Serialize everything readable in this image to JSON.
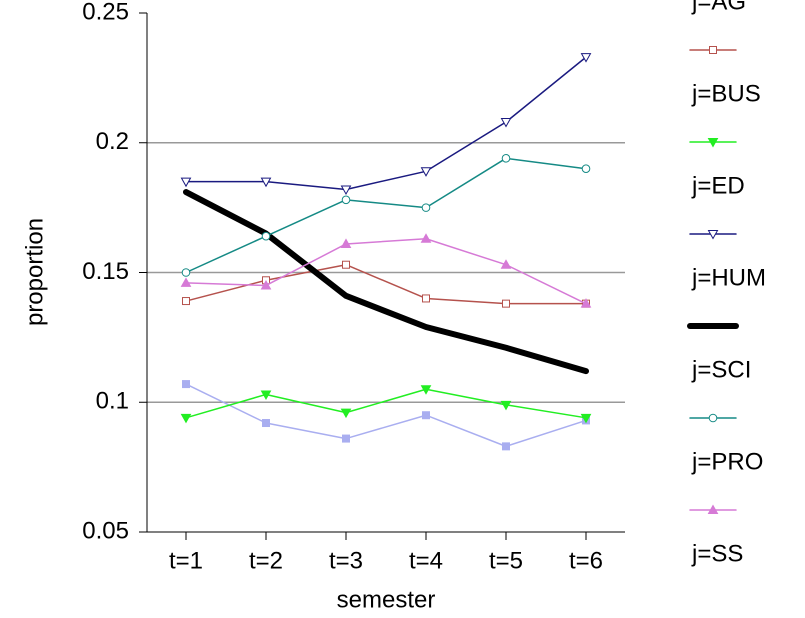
{
  "chart_data": {
    "type": "line",
    "x_label": "semester",
    "y_label": "proportion",
    "categories": [
      "t=1",
      "t=2",
      "t=3",
      "t=4",
      "t=5",
      "t=6"
    ],
    "ylim": [
      0.05,
      0.25
    ],
    "yticks": [
      0.05,
      0.1,
      0.15,
      0.2,
      0.25
    ],
    "grid": true,
    "series": [
      {
        "name": "j=AG",
        "color": "#a9aef0",
        "marker": "square-filled",
        "linewidth": 1.5,
        "values": [
          0.107,
          0.092,
          0.086,
          0.095,
          0.083,
          0.093
        ]
      },
      {
        "name": "j=BUS",
        "color": "#b5524d",
        "marker": "square-open",
        "linewidth": 1.5,
        "values": [
          0.139,
          0.147,
          0.153,
          0.14,
          0.138,
          0.138
        ]
      },
      {
        "name": "j=ED",
        "color": "#22ee22",
        "marker": "triangle-down-filled",
        "linewidth": 1.5,
        "values": [
          0.094,
          0.103,
          0.096,
          0.105,
          0.099,
          0.094
        ]
      },
      {
        "name": "j=HUM",
        "color": "#1a1a80",
        "marker": "triangle-down-open",
        "linewidth": 1.5,
        "values": [
          0.185,
          0.185,
          0.182,
          0.189,
          0.208,
          0.233
        ]
      },
      {
        "name": "j=SCI",
        "color": "#000000",
        "marker": "none",
        "linewidth": 6,
        "values": [
          0.181,
          0.165,
          0.141,
          0.129,
          0.121,
          0.112
        ]
      },
      {
        "name": "j=PRO",
        "color": "#158a85",
        "marker": "circle-open",
        "linewidth": 1.5,
        "values": [
          0.15,
          0.164,
          0.178,
          0.175,
          0.194,
          0.19
        ]
      },
      {
        "name": "j=SS",
        "color": "#d67ad6",
        "marker": "triangle-up-filled",
        "linewidth": 1.5,
        "values": [
          0.146,
          0.145,
          0.161,
          0.163,
          0.153,
          0.138
        ]
      }
    ]
  }
}
